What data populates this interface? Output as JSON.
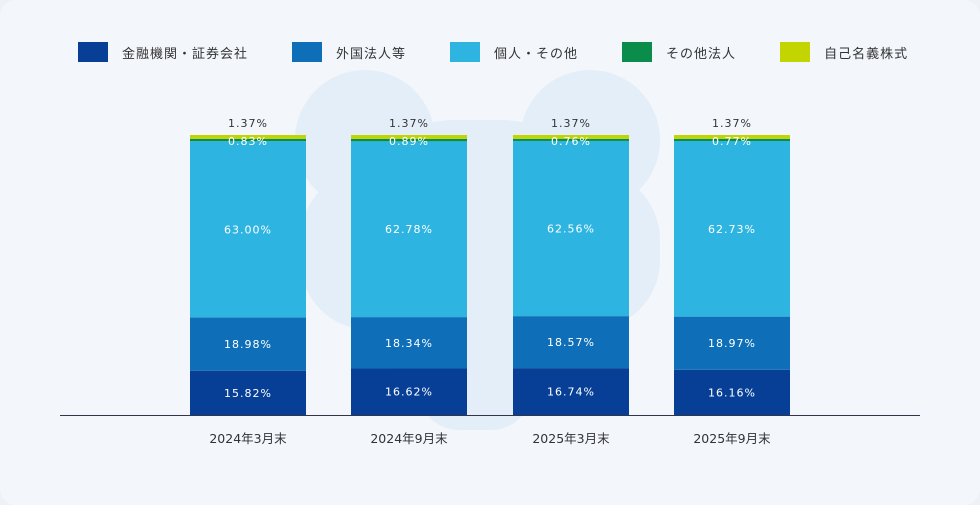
{
  "chart_data": {
    "type": "bar",
    "stacked": true,
    "categories": [
      "2024年3月末",
      "2024年9月末",
      "2025年3月末",
      "2025年9月末"
    ],
    "series": [
      {
        "name": "金融機関・証券会社",
        "color": "#073f96",
        "values": [
          15.82,
          16.62,
          16.74,
          16.16
        ],
        "labels": [
          "15.82%",
          "16.62%",
          "16.74%",
          "16.16%"
        ]
      },
      {
        "name": "外国法人等",
        "color": "#0e6fb8",
        "values": [
          18.98,
          18.34,
          18.57,
          18.97
        ],
        "labels": [
          "18.98%",
          "18.34%",
          "18.57%",
          "18.97%"
        ]
      },
      {
        "name": "個人・その他",
        "color": "#2db4e1",
        "values": [
          63.0,
          62.78,
          62.56,
          62.73
        ],
        "labels": [
          "63.00%",
          "62.78%",
          "62.56%",
          "62.73%"
        ]
      },
      {
        "name": "その他法人",
        "color": "#0a8d4b",
        "values": [
          0.83,
          0.89,
          0.76,
          0.77
        ],
        "labels": [
          "0.83%",
          "0.89%",
          "0.76%",
          "0.77%"
        ]
      },
      {
        "name": "自己名義株式",
        "color": "#c3d500",
        "values": [
          1.37,
          1.37,
          1.37,
          1.37
        ],
        "labels": [
          "1.37%",
          "1.37%",
          "1.37%",
          "1.37%"
        ]
      }
    ],
    "ylim": [
      0,
      100
    ],
    "legend_position": "top",
    "title": "",
    "xlabel": "",
    "ylabel": ""
  }
}
